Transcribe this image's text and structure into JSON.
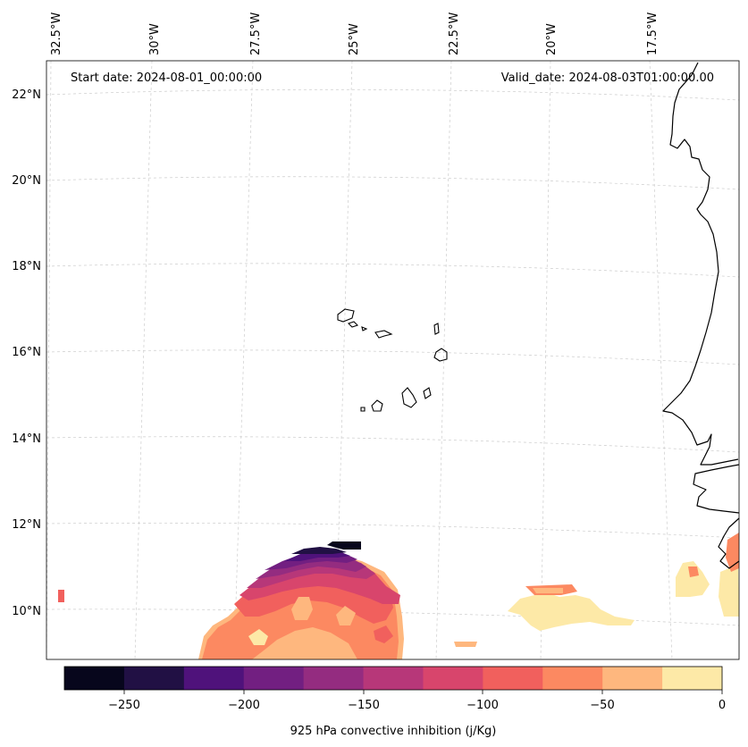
{
  "header": {
    "start_date": "Start date: 2024-08-01_00:00:00",
    "valid_date": "Valid_date: 2024-08-03T01:00:00.00"
  },
  "map": {
    "lon_labels": [
      "32.5°W",
      "30°W",
      "27.5°W",
      "25°W",
      "22.5°W",
      "20°W",
      "17.5°W"
    ],
    "lat_labels": [
      "22°N",
      "20°N",
      "18°N",
      "16°N",
      "14°N",
      "12°N",
      "10°N"
    ],
    "gridlines": true
  },
  "colorbar": {
    "label": "925 hPa convective inhibition (j/Kg)",
    "ticks": [
      "−250",
      "−200",
      "−150",
      "−100",
      "−50",
      "0"
    ],
    "colors": [
      "#07061c",
      "#211044",
      "#4f127b",
      "#721f81",
      "#942c80",
      "#b73779",
      "#d8456c",
      "#f1605d",
      "#fc8961",
      "#feb77e",
      "#fde9a7"
    ]
  }
}
